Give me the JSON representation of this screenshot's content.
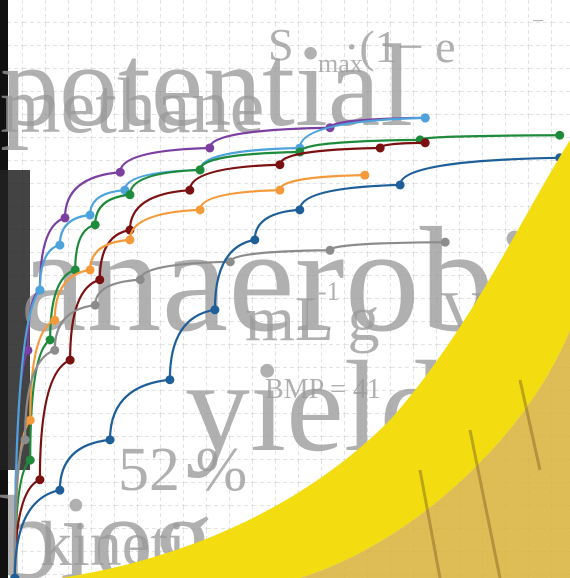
{
  "chart_data": {
    "type": "line",
    "xlim": [
      0,
      100
    ],
    "ylim": [
      0,
      100
    ],
    "annotations": [
      "potential",
      "methane",
      "S",
      "max",
      "·(1− e",
      "−",
      "anaerobi",
      "mL g",
      "-1",
      "V",
      "yield",
      "BMP = 41",
      "52 %",
      "biog",
      "kineti"
    ],
    "series": [
      {
        "color": "#7b3fa0",
        "x": [
          2.6,
          4.9,
          7.0,
          11.4,
          21.1,
          36.8,
          57.9,
          74.6
        ],
        "values": [
          0,
          39.4,
          49.8,
          62.3,
          70.2,
          74.4,
          77.9,
          79.6
        ]
      },
      {
        "color": "#4da3db",
        "x": [
          2.6,
          7.0,
          10.5,
          15.8,
          21.9,
          35.1,
          52.6,
          74.6
        ],
        "values": [
          0,
          49.8,
          57.6,
          62.8,
          67.1,
          70.6,
          74.4,
          79.6
        ]
      },
      {
        "color": "#1e8a3c",
        "x": [
          2.6,
          5.3,
          8.8,
          13.2,
          16.7,
          22.8,
          35.1,
          52.6,
          73.7,
          98.2
        ],
        "values": [
          0,
          20.4,
          41.2,
          53.3,
          61.1,
          66.3,
          70.6,
          73.7,
          75.8,
          76.6
        ]
      },
      {
        "color": "#7a1010",
        "x": [
          2.6,
          7.0,
          12.3,
          17.5,
          22.8,
          33.3,
          49.1,
          66.7,
          74.6
        ],
        "values": [
          0,
          17.0,
          37.7,
          51.6,
          60.2,
          67.1,
          71.5,
          74.4,
          75.3
        ]
      },
      {
        "color": "#f59a3a",
        "x": [
          2.6,
          5.3,
          9.6,
          15.8,
          22.8,
          35.1,
          49.1,
          64.0
        ],
        "values": [
          0,
          27.3,
          44.6,
          53.3,
          58.5,
          63.7,
          67.1,
          69.7
        ]
      },
      {
        "color": "#8c8c8c",
        "x": [
          2.6,
          4.4,
          9.6,
          16.7,
          24.6,
          40.4,
          57.9,
          78.1
        ],
        "values": [
          0,
          23.9,
          39.4,
          47.2,
          51.6,
          54.7,
          56.7,
          58.1
        ]
      },
      {
        "color": "#1f5f99",
        "x": [
          2.6,
          10.5,
          19.3,
          29.8,
          37.7,
          44.7,
          52.6,
          70.2,
          98.2
        ],
        "values": [
          0,
          15.2,
          23.9,
          34.3,
          46.4,
          58.5,
          63.7,
          68.0,
          72.7
        ]
      }
    ]
  }
}
